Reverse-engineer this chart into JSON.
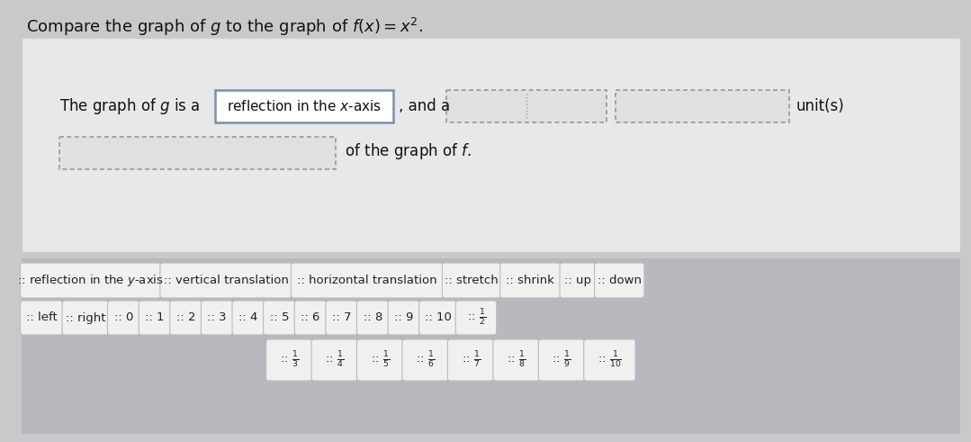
{
  "title": "Compare the graph of $g$ to the graph of $f(x) = x^2$.",
  "sentence_part1": "The graph of $g$ is a",
  "box1_text": "reflection in the $x$-axis",
  "sentence_and_a": "and a",
  "unit_text": "unit(s)",
  "sentence_part3": "of the graph of $f$.",
  "outer_bg": "#c9c9cc",
  "top_panel_bg": "#e8e8ea",
  "top_panel_edge": "#cccccc",
  "bottom_panel_bg": "#b8b9be",
  "solid_box_edge": "#7a8faa",
  "solid_box_face": "#ffffff",
  "dashed_box_edge": "#999999",
  "dashed_box_face": "#e0e0e2",
  "tile_face": "#f0f0f0",
  "tile_edge": "#cccccc",
  "title_color": "#111111",
  "text_color": "#111111",
  "tile_text_color": "#222222",
  "drag_items_row1": [
    ":: reflection in the $y$-axis",
    ":: vertical translation",
    ":: horizontal translation",
    ":: stretch",
    ":: shrink",
    ":: up",
    ":: down"
  ],
  "drag_items_row2": [
    ":: left",
    ":: right",
    ":: 0",
    ":: 1",
    ":: 2",
    ":: 3",
    ":: 4",
    ":: 5",
    ":: 6",
    ":: 7",
    ":: 8",
    ":: 9",
    ":: 10",
    ":: $\\frac{1}{2}$"
  ],
  "drag_items_row3": [
    ":: $\\frac{1}{3}$",
    ":: $\\frac{1}{4}$",
    ":: $\\frac{1}{5}$",
    ":: $\\frac{1}{6}$",
    ":: $\\frac{1}{7}$",
    ":: $\\frac{1}{8}$",
    ":: $\\frac{1}{9}$",
    ":: $\\frac{1}{10}$"
  ]
}
